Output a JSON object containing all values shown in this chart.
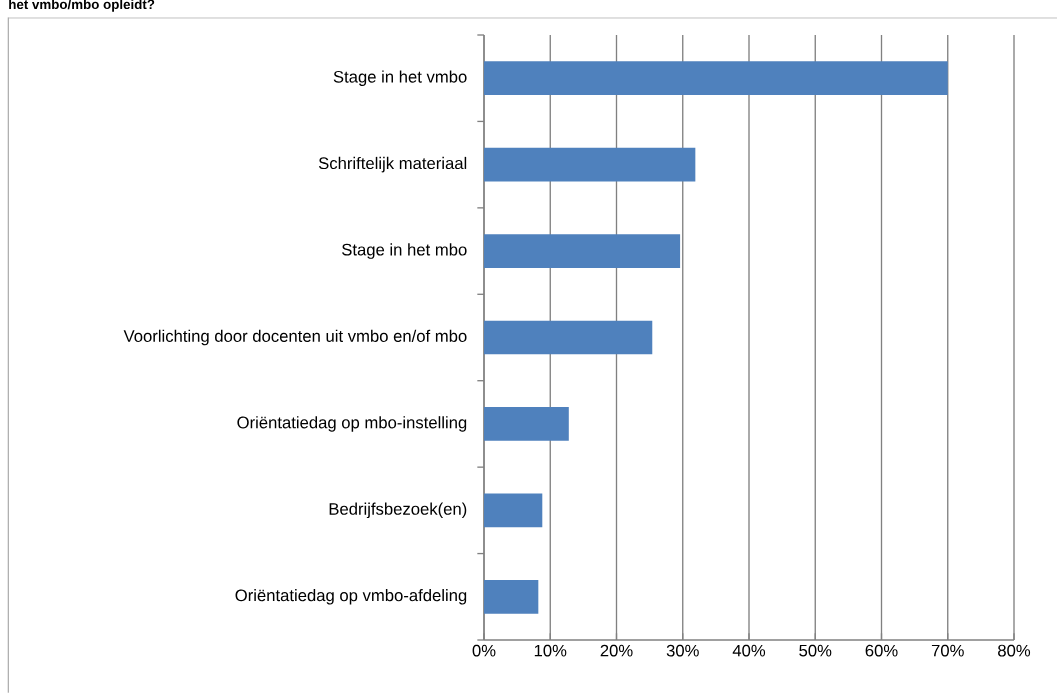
{
  "chart_data": {
    "type": "bar",
    "orientation": "horizontal",
    "title": "het vmbo/mbo opleidt?",
    "categories": [
      "Stage in het vmbo",
      "Schriftelijk materiaal",
      "Stage in het mbo",
      "Voorlichting door docenten uit vmbo en/of mbo",
      "Oriëntatiedag op mbo-instelling",
      "Bedrijfsbezoek(en)",
      "Oriëntatiedag op vmbo-afdeling"
    ],
    "values": [
      70,
      31.9,
      29.6,
      25.4,
      12.8,
      8.8,
      8.2
    ],
    "color": "#4f81bd",
    "xlim": [
      0,
      80
    ],
    "xticks": [
      {
        "value": 0,
        "label": "0%"
      },
      {
        "value": 10,
        "label": "10%"
      },
      {
        "value": 20,
        "label": "20%"
      },
      {
        "value": 30,
        "label": "30%"
      },
      {
        "value": 40,
        "label": "40%"
      },
      {
        "value": 50,
        "label": "50%"
      },
      {
        "value": 60,
        "label": "60%"
      },
      {
        "value": 70,
        "label": "70%"
      },
      {
        "value": 80,
        "label": "80%"
      }
    ],
    "grid": "x"
  }
}
